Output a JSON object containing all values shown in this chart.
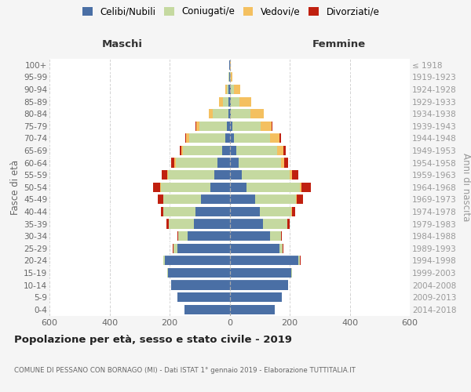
{
  "age_groups": [
    "0-4",
    "5-9",
    "10-14",
    "15-19",
    "20-24",
    "25-29",
    "30-34",
    "35-39",
    "40-44",
    "45-49",
    "50-54",
    "55-59",
    "60-64",
    "65-69",
    "70-74",
    "75-79",
    "80-84",
    "85-89",
    "90-94",
    "95-99",
    "100+"
  ],
  "birth_years": [
    "2014-2018",
    "2009-2013",
    "2004-2008",
    "1999-2003",
    "1994-1998",
    "1989-1993",
    "1984-1988",
    "1979-1983",
    "1974-1978",
    "1969-1973",
    "1964-1968",
    "1959-1963",
    "1954-1958",
    "1949-1953",
    "1944-1948",
    "1939-1943",
    "1934-1938",
    "1929-1933",
    "1924-1928",
    "1919-1923",
    "≤ 1918"
  ],
  "colors": {
    "celibi": "#4a6fa5",
    "coniugati": "#c5d9a0",
    "vedovi": "#f4c060",
    "divorziati": "#c0200f"
  },
  "maschi": {
    "celibi": [
      150,
      175,
      195,
      205,
      215,
      175,
      140,
      120,
      115,
      95,
      65,
      50,
      40,
      25,
      15,
      10,
      5,
      4,
      3,
      2,
      2
    ],
    "coniugati": [
      0,
      0,
      0,
      2,
      5,
      12,
      30,
      82,
      105,
      125,
      165,
      155,
      140,
      130,
      120,
      90,
      50,
      18,
      6,
      1,
      0
    ],
    "vedovi": [
      0,
      0,
      0,
      0,
      0,
      0,
      0,
      0,
      0,
      1,
      2,
      3,
      4,
      6,
      10,
      12,
      15,
      12,
      6,
      1,
      0
    ],
    "divorziati": [
      0,
      0,
      0,
      0,
      1,
      2,
      4,
      8,
      10,
      18,
      22,
      18,
      12,
      6,
      4,
      2,
      0,
      0,
      0,
      0,
      0
    ]
  },
  "femmine": {
    "celibi": [
      150,
      175,
      195,
      205,
      230,
      165,
      135,
      110,
      100,
      85,
      55,
      40,
      30,
      22,
      15,
      8,
      5,
      4,
      3,
      2,
      1
    ],
    "coniugati": [
      0,
      0,
      0,
      2,
      5,
      12,
      35,
      82,
      105,
      135,
      180,
      160,
      140,
      135,
      120,
      95,
      65,
      28,
      12,
      2,
      0
    ],
    "vedovi": [
      0,
      0,
      0,
      0,
      0,
      0,
      0,
      1,
      2,
      3,
      5,
      8,
      12,
      22,
      32,
      38,
      45,
      40,
      20,
      5,
      2
    ],
    "divorziati": [
      0,
      0,
      0,
      0,
      1,
      2,
      4,
      8,
      12,
      22,
      30,
      22,
      14,
      8,
      4,
      2,
      0,
      0,
      0,
      0,
      0
    ]
  },
  "xlim": 600,
  "title": "Popolazione per età, sesso e stato civile - 2019",
  "subtitle": "COMUNE DI PESSANO CON BORNAGO (MI) - Dati ISTAT 1° gennaio 2019 - Elaborazione TUTTITALIA.IT",
  "ylabel_left": "Fasce di età",
  "ylabel_right": "Anni di nascita",
  "xlabel_left": "Maschi",
  "xlabel_right": "Femmine",
  "legend_labels": [
    "Celibi/Nubili",
    "Coniugati/e",
    "Vedovi/e",
    "Divorziati/e"
  ],
  "bg_color": "#f5f5f5",
  "plot_bg": "#ffffff",
  "grid_color": "#cccccc"
}
